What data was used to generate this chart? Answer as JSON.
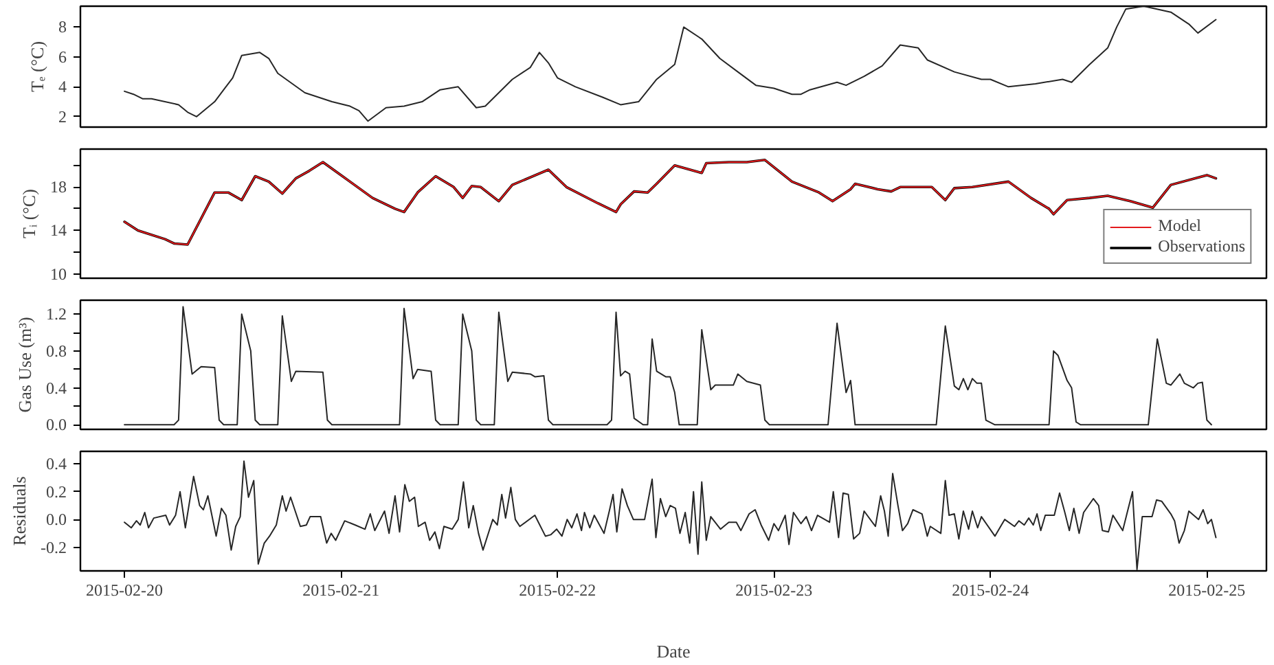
{
  "chart_data": [
    {
      "type": "line",
      "ylabel": "Tₑ (°C)",
      "tick_labels": "y",
      "grid": false,
      "legend": false,
      "line_style": "solid",
      "marker": "none",
      "xlim": [
        "2015-02-19T19:07",
        "2015-02-25T06:36"
      ],
      "xticks": [
        "2015-02-20",
        "2015-02-21",
        "2015-02-22",
        "2015-02-23",
        "2015-02-24",
        "2015-02-25"
      ],
      "ylim": [
        1.3,
        9.4
      ],
      "yticks": [
        2,
        4,
        6,
        8
      ],
      "x": [
        "2015-02-20T00:00",
        "2015-02-20T01:00",
        "2015-02-20T02:00",
        "2015-02-20T03:00",
        "2015-02-20T06:00",
        "2015-02-20T07:00",
        "2015-02-20T08:00",
        "2015-02-20T10:00",
        "2015-02-20T11:00",
        "2015-02-20T12:00",
        "2015-02-20T13:00",
        "2015-02-20T15:00",
        "2015-02-20T16:00",
        "2015-02-20T17:00",
        "2015-02-20T20:00",
        "2015-02-20T23:00",
        "2015-02-21T01:00",
        "2015-02-21T02:00",
        "2015-02-21T03:00",
        "2015-02-21T05:00",
        "2015-02-21T07:00",
        "2015-02-21T09:00",
        "2015-02-21T11:00",
        "2015-02-21T13:00",
        "2015-02-21T15:00",
        "2015-02-21T16:00",
        "2015-02-21T19:00",
        "2015-02-21T21:00",
        "2015-02-21T22:00",
        "2015-02-21T23:00",
        "2015-02-22T00:00",
        "2015-02-22T02:00",
        "2015-02-22T05:00",
        "2015-02-22T07:00",
        "2015-02-22T09:00",
        "2015-02-22T11:00",
        "2015-02-22T13:00",
        "2015-02-22T14:00",
        "2015-02-22T16:00",
        "2015-02-22T18:00",
        "2015-02-22T20:00",
        "2015-02-22T22:00",
        "2015-02-23T00:00",
        "2015-02-23T02:00",
        "2015-02-23T03:00",
        "2015-02-23T04:00",
        "2015-02-23T07:00",
        "2015-02-23T08:00",
        "2015-02-23T10:00",
        "2015-02-23T12:00",
        "2015-02-23T14:00",
        "2015-02-23T16:00",
        "2015-02-23T17:00",
        "2015-02-23T20:00",
        "2015-02-23T23:00",
        "2015-02-24T00:00",
        "2015-02-24T02:00",
        "2015-02-24T05:00",
        "2015-02-24T08:00",
        "2015-02-24T09:00",
        "2015-02-24T11:00",
        "2015-02-24T13:00",
        "2015-02-24T14:00",
        "2015-02-24T15:00",
        "2015-02-24T17:00",
        "2015-02-24T20:00",
        "2015-02-24T22:00",
        "2015-02-24T23:00",
        "2015-02-25T01:00"
      ],
      "series": [
        {
          "color": "#262626",
          "values": [
            3.7,
            3.5,
            3.2,
            3.2,
            2.8,
            2.3,
            2.0,
            3.0,
            3.8,
            4.6,
            6.1,
            6.3,
            5.9,
            4.9,
            3.6,
            3.0,
            2.7,
            2.4,
            1.7,
            2.6,
            2.7,
            3.0,
            3.8,
            4.0,
            2.6,
            2.7,
            4.5,
            5.3,
            6.3,
            5.6,
            4.6,
            4.0,
            3.3,
            2.8,
            3.0,
            4.5,
            5.5,
            8.0,
            7.2,
            5.9,
            5.0,
            4.1,
            3.9,
            3.5,
            3.5,
            3.8,
            4.3,
            4.1,
            4.7,
            5.4,
            6.8,
            6.6,
            5.8,
            5.0,
            4.5,
            4.5,
            4.0,
            4.2,
            4.5,
            4.3,
            5.5,
            6.6,
            8.0,
            9.2,
            9.4,
            9.0,
            8.2,
            7.6,
            8.5
          ]
        }
      ]
    },
    {
      "type": "line",
      "ylabel": "Tᵢ (°C)",
      "tick_labels": "y",
      "grid": false,
      "legend": "bottom right",
      "line_style": "solid",
      "marker": "none",
      "xlim": [
        "2015-02-19T19:07",
        "2015-02-25T06:36"
      ],
      "xticks": [
        "2015-02-20",
        "2015-02-21",
        "2015-02-22",
        "2015-02-23",
        "2015-02-24",
        "2015-02-25"
      ],
      "ylim": [
        9.6,
        21.5
      ],
      "yticks": [
        10,
        {
          "value": 12,
          "label": null
        },
        14,
        {
          "value": 16,
          "label": null
        },
        18,
        {
          "value": 20,
          "label": null
        }
      ],
      "x": [
        "2015-02-20T00:00",
        "2015-02-20T01:30",
        "2015-02-20T04:30",
        "2015-02-20T05:30",
        "2015-02-20T07:00",
        "2015-02-20T10:00",
        "2015-02-20T11:30",
        "2015-02-20T13:00",
        "2015-02-20T14:30",
        "2015-02-20T16:00",
        "2015-02-20T17:30",
        "2015-02-20T19:00",
        "2015-02-20T20:30",
        "2015-02-20T22:00",
        "2015-02-21T01:00",
        "2015-02-21T03:30",
        "2015-02-21T06:00",
        "2015-02-21T07:00",
        "2015-02-21T08:30",
        "2015-02-21T10:30",
        "2015-02-21T12:30",
        "2015-02-21T13:30",
        "2015-02-21T14:30",
        "2015-02-21T15:30",
        "2015-02-21T17:30",
        "2015-02-21T19:00",
        "2015-02-21T23:00",
        "2015-02-22T01:00",
        "2015-02-22T04:30",
        "2015-02-22T06:30",
        "2015-02-22T07:00",
        "2015-02-22T08:30",
        "2015-02-22T10:00",
        "2015-02-22T11:00",
        "2015-02-22T13:00",
        "2015-02-22T16:00",
        "2015-02-22T16:30",
        "2015-02-22T19:00",
        "2015-02-22T21:00",
        "2015-02-22T23:00",
        "2015-02-23T02:00",
        "2015-02-23T05:00",
        "2015-02-23T06:30",
        "2015-02-23T08:30",
        "2015-02-23T09:00",
        "2015-02-23T11:30",
        "2015-02-23T13:00",
        "2015-02-23T14:00",
        "2015-02-23T17:30",
        "2015-02-23T19:00",
        "2015-02-23T20:00",
        "2015-02-23T22:00",
        "2015-02-24T02:00",
        "2015-02-24T04:30",
        "2015-02-24T06:30",
        "2015-02-24T07:00",
        "2015-02-24T08:30",
        "2015-02-24T11:00",
        "2015-02-24T13:00",
        "2015-02-24T15:30",
        "2015-02-24T18:00",
        "2015-02-24T20:00",
        "2015-02-25T00:00",
        "2015-02-25T01:00"
      ],
      "series": [
        {
          "name": "Model",
          "color": "#e31a1c",
          "values": [
            14.8,
            14.0,
            13.2,
            12.8,
            12.7,
            17.5,
            17.5,
            16.8,
            19.0,
            18.5,
            17.4,
            18.8,
            19.5,
            20.3,
            18.5,
            17.0,
            16.0,
            15.7,
            17.5,
            19.0,
            18.0,
            17.0,
            18.1,
            18.0,
            16.7,
            18.2,
            19.6,
            18.0,
            16.5,
            15.7,
            16.4,
            17.6,
            17.5,
            18.3,
            20.0,
            19.3,
            20.2,
            20.3,
            20.3,
            20.5,
            18.5,
            17.5,
            16.7,
            17.8,
            18.3,
            17.8,
            17.6,
            18.0,
            18.0,
            16.8,
            17.9,
            18.0,
            18.5,
            17.0,
            16.0,
            15.5,
            16.8,
            17.0,
            17.2,
            16.7,
            16.1,
            18.2,
            19.1,
            18.8
          ]
        },
        {
          "name": "Observations",
          "color": "#000000",
          "values": [
            14.8,
            14.0,
            13.2,
            12.8,
            12.7,
            17.5,
            17.5,
            16.8,
            19.0,
            18.5,
            17.4,
            18.8,
            19.5,
            20.3,
            18.5,
            17.0,
            16.0,
            15.7,
            17.5,
            19.0,
            18.0,
            17.0,
            18.1,
            18.0,
            16.7,
            18.2,
            19.6,
            18.0,
            16.5,
            15.7,
            16.4,
            17.6,
            17.5,
            18.3,
            20.0,
            19.3,
            20.2,
            20.3,
            20.3,
            20.5,
            18.5,
            17.5,
            16.7,
            17.8,
            18.3,
            17.8,
            17.6,
            18.0,
            18.0,
            16.8,
            17.9,
            18.0,
            18.5,
            17.0,
            16.0,
            15.5,
            16.8,
            17.0,
            17.2,
            16.7,
            16.1,
            18.2,
            19.1,
            18.8
          ]
        }
      ]
    },
    {
      "type": "line",
      "ylabel": "Gas Use (m³)",
      "tick_labels": "y",
      "grid": false,
      "legend": false,
      "line_style": "solid",
      "marker": "none",
      "xlim": [
        "2015-02-19T19:07",
        "2015-02-25T06:36"
      ],
      "xticks": [
        "2015-02-20",
        "2015-02-21",
        "2015-02-22",
        "2015-02-23",
        "2015-02-24",
        "2015-02-25"
      ],
      "ylim": [
        -0.05,
        1.35
      ],
      "yticks": [
        {
          "value": 0,
          "label": "0.0"
        },
        {
          "value": 0.2,
          "label": null
        },
        {
          "value": 0.4,
          "label": "0.4"
        },
        {
          "value": 0.6,
          "label": null
        },
        {
          "value": 0.8,
          "label": "0.8"
        },
        {
          "value": 1.0,
          "label": null
        },
        {
          "value": 1.2,
          "label": "1.2"
        }
      ],
      "x": [
        "2015-02-20T00:00",
        "2015-02-20T05:30",
        "2015-02-20T06:00",
        "2015-02-20T06:30",
        "2015-02-20T07:30",
        "2015-02-20T08:30",
        "2015-02-20T10:00",
        "2015-02-20T10:30",
        "2015-02-20T11:00",
        "2015-02-20T12:30",
        "2015-02-20T13:00",
        "2015-02-20T14:00",
        "2015-02-20T14:30",
        "2015-02-20T15:00",
        "2015-02-20T17:00",
        "2015-02-20T17:30",
        "2015-02-20T18:30",
        "2015-02-20T19:00",
        "2015-02-20T22:00",
        "2015-02-20T22:30",
        "2015-02-20T23:00",
        "2015-02-21T06:30",
        "2015-02-21T07:00",
        "2015-02-21T08:00",
        "2015-02-21T08:30",
        "2015-02-21T10:00",
        "2015-02-21T10:30",
        "2015-02-21T11:00",
        "2015-02-21T13:00",
        "2015-02-21T13:30",
        "2015-02-21T14:30",
        "2015-02-21T15:00",
        "2015-02-21T15:30",
        "2015-02-21T17:00",
        "2015-02-21T17:30",
        "2015-02-21T18:30",
        "2015-02-21T19:00",
        "2015-02-21T21:00",
        "2015-02-21T21:30",
        "2015-02-21T22:30",
        "2015-02-21T23:00",
        "2015-02-21T23:30",
        "2015-02-22T05:30",
        "2015-02-22T06:00",
        "2015-02-22T06:30",
        "2015-02-22T07:00",
        "2015-02-22T07:30",
        "2015-02-22T08:00",
        "2015-02-22T08:30",
        "2015-02-22T09:30",
        "2015-02-22T10:00",
        "2015-02-22T10:30",
        "2015-02-22T11:00",
        "2015-02-22T12:00",
        "2015-02-22T12:30",
        "2015-02-22T13:00",
        "2015-02-22T13:30",
        "2015-02-22T15:30",
        "2015-02-22T16:00",
        "2015-02-22T17:00",
        "2015-02-22T17:30",
        "2015-02-22T19:30",
        "2015-02-22T20:00",
        "2015-02-22T21:00",
        "2015-02-22T22:30",
        "2015-02-22T23:00",
        "2015-02-22T23:30",
        "2015-02-23T06:00",
        "2015-02-23T07:00",
        "2015-02-23T08:00",
        "2015-02-23T08:30",
        "2015-02-23T09:00",
        "2015-02-23T18:00",
        "2015-02-23T19:00",
        "2015-02-23T20:00",
        "2015-02-23T20:30",
        "2015-02-23T21:00",
        "2015-02-23T21:30",
        "2015-02-23T22:00",
        "2015-02-23T22:30",
        "2015-02-23T23:00",
        "2015-02-23T23:30",
        "2015-02-24T00:30",
        "2015-02-24T06:30",
        "2015-02-24T07:00",
        "2015-02-24T07:30",
        "2015-02-24T08:30",
        "2015-02-24T09:00",
        "2015-02-24T09:30",
        "2015-02-24T10:00",
        "2015-02-24T17:30",
        "2015-02-24T18:30",
        "2015-02-24T19:30",
        "2015-02-24T20:00",
        "2015-02-24T21:00",
        "2015-02-24T21:30",
        "2015-02-24T22:30",
        "2015-02-24T23:00",
        "2015-02-24T23:30",
        "2015-02-25T00:00",
        "2015-02-25T00:30"
      ],
      "series": [
        {
          "color": "#262626",
          "values": [
            0,
            0,
            0.05,
            1.28,
            0.55,
            0.63,
            0.62,
            0.05,
            0,
            0,
            1.2,
            0.8,
            0.05,
            0,
            0,
            1.18,
            0.47,
            0.58,
            0.57,
            0.05,
            0,
            0,
            1.26,
            0.5,
            0.6,
            0.58,
            0.05,
            0,
            0,
            1.2,
            0.8,
            0.05,
            0,
            0,
            1.22,
            0.47,
            0.57,
            0.55,
            0.52,
            0.53,
            0.05,
            0,
            0,
            0.05,
            1.22,
            0.53,
            0.58,
            0.55,
            0.07,
            0,
            0,
            0.93,
            0.58,
            0.52,
            0.52,
            0.35,
            0,
            0,
            1.03,
            0.38,
            0.43,
            0.43,
            0.55,
            0.47,
            0.43,
            0.05,
            0,
            0,
            1.1,
            0.35,
            0.48,
            0,
            0,
            1.07,
            0.42,
            0.38,
            0.5,
            0.38,
            0.5,
            0.45,
            0.45,
            0.05,
            0,
            0,
            0.8,
            0.75,
            0.48,
            0.4,
            0.03,
            0,
            0,
            0.93,
            0.45,
            0.43,
            0.55,
            0.45,
            0.4,
            0.45,
            0.46,
            0.05,
            0
          ]
        }
      ]
    },
    {
      "type": "line",
      "ylabel": "Residuals",
      "xlabel": "Date",
      "grid": false,
      "legend": false,
      "line_style": "solid",
      "marker": "none",
      "xlim": [
        "2015-02-19T19:07",
        "2015-02-25T06:36"
      ],
      "xticks": [
        "2015-02-20",
        "2015-02-21",
        "2015-02-22",
        "2015-02-23",
        "2015-02-24",
        "2015-02-25"
      ],
      "ylim": [
        -0.37,
        0.49
      ],
      "yticks": [
        {
          "value": -0.2,
          "label": "-0.2"
        },
        {
          "value": 0,
          "label": "0.0"
        },
        {
          "value": 0.2,
          "label": "0.2"
        },
        {
          "value": 0.4,
          "label": "0.4"
        }
      ],
      "x": [
        "2015-02-20T00:00",
        "2015-02-20T00:45",
        "2015-02-20T01:20",
        "2015-02-20T01:45",
        "2015-02-20T02:15",
        "2015-02-20T02:40",
        "2015-02-20T03:15",
        "2015-02-20T04:35",
        "2015-02-20T05:00",
        "2015-02-20T05:40",
        "2015-02-20T06:10",
        "2015-02-20T06:45",
        "2015-02-20T07:40",
        "2015-02-20T08:20",
        "2015-02-20T08:45",
        "2015-02-20T09:15",
        "2015-02-20T10:10",
        "2015-02-20T10:45",
        "2015-02-20T11:15",
        "2015-02-20T11:50",
        "2015-02-20T12:20",
        "2015-02-20T12:50",
        "2015-02-20T13:15",
        "2015-02-20T13:45",
        "2015-02-20T14:20",
        "2015-02-20T14:50",
        "2015-02-20T15:30",
        "2015-02-20T16:05",
        "2015-02-20T16:50",
        "2015-02-20T17:30",
        "2015-02-20T17:55",
        "2015-02-20T18:25",
        "2015-02-20T19:30",
        "2015-02-20T20:10",
        "2015-02-20T20:35",
        "2015-02-20T21:45",
        "2015-02-20T22:25",
        "2015-02-20T22:55",
        "2015-02-20T23:25",
        "2015-02-21T00:25",
        "2015-02-21T01:35",
        "2015-02-21T02:40",
        "2015-02-21T03:15",
        "2015-02-21T03:45",
        "2015-02-21T04:50",
        "2015-02-21T05:20",
        "2015-02-21T06:00",
        "2015-02-21T06:30",
        "2015-02-21T07:05",
        "2015-02-21T07:35",
        "2015-02-21T08:10",
        "2015-02-21T08:35",
        "2015-02-21T09:20",
        "2015-02-21T09:50",
        "2015-02-21T10:25",
        "2015-02-21T10:55",
        "2015-02-21T11:25",
        "2015-02-21T12:20",
        "2015-02-21T13:00",
        "2015-02-21T13:35",
        "2015-02-21T14:10",
        "2015-02-21T14:40",
        "2015-02-21T15:15",
        "2015-02-21T15:45",
        "2015-02-21T16:50",
        "2015-02-21T17:20",
        "2015-02-21T17:50",
        "2015-02-21T18:15",
        "2015-02-21T18:50",
        "2015-02-21T19:20",
        "2015-02-21T19:50",
        "2015-02-21T21:30",
        "2015-02-21T22:40",
        "2015-02-21T23:15",
        "2015-02-21T23:55",
        "2015-02-22T00:30",
        "2015-02-22T01:05",
        "2015-02-22T01:35",
        "2015-02-22T02:10",
        "2015-02-22T02:40",
        "2015-02-22T03:00",
        "2015-02-22T03:35",
        "2015-02-22T04:05",
        "2015-02-22T05:10",
        "2015-02-22T05:45",
        "2015-02-22T06:10",
        "2015-02-22T06:35",
        "2015-02-22T07:10",
        "2015-02-22T07:45",
        "2015-02-22T08:25",
        "2015-02-22T09:40",
        "2015-02-22T10:30",
        "2015-02-22T10:55",
        "2015-02-22T11:25",
        "2015-02-22T12:00",
        "2015-02-22T12:30",
        "2015-02-22T13:05",
        "2015-02-22T13:35",
        "2015-02-22T14:10",
        "2015-02-22T14:40",
        "2015-02-22T15:05",
        "2015-02-22T15:35",
        "2015-02-22T16:00",
        "2015-02-22T16:30",
        "2015-02-22T17:00",
        "2015-02-22T18:05",
        "2015-02-22T19:00",
        "2015-02-22T19:50",
        "2015-02-22T20:20",
        "2015-02-22T21:15",
        "2015-02-22T21:55",
        "2015-02-22T22:35",
        "2015-02-22T23:25",
        "2015-02-23T00:00",
        "2015-02-23T00:30",
        "2015-02-23T01:15",
        "2015-02-23T01:40",
        "2015-02-23T02:10",
        "2015-02-23T03:00",
        "2015-02-23T03:35",
        "2015-02-23T04:10",
        "2015-02-23T04:50",
        "2015-02-23T06:10",
        "2015-02-23T06:35",
        "2015-02-23T07:10",
        "2015-02-23T07:40",
        "2015-02-23T08:15",
        "2015-02-23T08:50",
        "2015-02-23T09:30",
        "2015-02-23T10:00",
        "2015-02-23T11:15",
        "2015-02-23T11:50",
        "2015-02-23T12:15",
        "2015-02-23T12:40",
        "2015-02-23T13:10",
        "2015-02-23T13:45",
        "2015-02-23T14:15",
        "2015-02-23T14:50",
        "2015-02-23T15:25",
        "2015-02-23T16:25",
        "2015-02-23T17:00",
        "2015-02-23T17:20",
        "2015-02-23T18:30",
        "2015-02-23T19:00",
        "2015-02-23T19:25",
        "2015-02-23T20:00",
        "2015-02-23T20:30",
        "2015-02-23T21:00",
        "2015-02-23T21:35",
        "2015-02-23T22:00",
        "2015-02-23T22:35",
        "2015-02-23T23:00",
        "2015-02-24T00:30",
        "2015-02-24T01:35",
        "2015-02-24T02:40",
        "2015-02-24T03:10",
        "2015-02-24T03:45",
        "2015-02-24T04:15",
        "2015-02-24T04:45",
        "2015-02-24T05:10",
        "2015-02-24T05:35",
        "2015-02-24T06:05",
        "2015-02-24T07:05",
        "2015-02-24T07:40",
        "2015-02-24T08:15",
        "2015-02-24T08:45",
        "2015-02-24T09:15",
        "2015-02-24T09:50",
        "2015-02-24T10:20",
        "2015-02-24T11:25",
        "2015-02-24T12:00",
        "2015-02-24T12:25",
        "2015-02-24T13:05",
        "2015-02-24T13:35",
        "2015-02-24T14:40",
        "2015-02-24T15:10",
        "2015-02-24T15:45",
        "2015-02-24T16:15",
        "2015-02-24T16:50",
        "2015-02-24T17:55",
        "2015-02-24T18:25",
        "2015-02-24T19:00",
        "2015-02-24T20:00",
        "2015-02-24T20:25",
        "2015-02-24T20:55",
        "2015-02-24T21:30",
        "2015-02-24T22:00",
        "2015-02-24T23:05",
        "2015-02-24T23:35",
        "2015-02-25T00:05",
        "2015-02-25T00:30",
        "2015-02-25T01:00"
      ],
      "series": [
        {
          "color": "#262626",
          "values": [
            -0.02,
            -0.06,
            -0.01,
            -0.04,
            0.05,
            -0.06,
            0.01,
            0.03,
            -0.04,
            0.03,
            0.2,
            -0.06,
            0.31,
            0.1,
            0.07,
            0.17,
            -0.12,
            0.08,
            0.03,
            -0.22,
            -0.05,
            0.02,
            0.42,
            0.16,
            0.28,
            -0.32,
            -0.17,
            -0.12,
            -0.04,
            0.17,
            0.06,
            0.16,
            -0.05,
            -0.04,
            0.02,
            0.02,
            -0.17,
            -0.1,
            -0.15,
            -0.01,
            -0.04,
            -0.07,
            0.04,
            -0.08,
            0.06,
            -0.1,
            0.17,
            -0.09,
            0.25,
            0.13,
            0.16,
            -0.05,
            -0.02,
            -0.15,
            -0.09,
            -0.21,
            -0.05,
            -0.07,
            0.0,
            0.27,
            -0.06,
            0.1,
            -0.1,
            -0.22,
            0.0,
            -0.04,
            0.18,
            0.01,
            0.23,
            0.0,
            -0.05,
            0.03,
            -0.12,
            -0.11,
            -0.07,
            -0.12,
            0.0,
            -0.06,
            0.04,
            -0.08,
            0.05,
            -0.06,
            0.03,
            -0.1,
            0.06,
            0.18,
            -0.09,
            0.22,
            0.1,
            0.0,
            0.0,
            0.29,
            -0.13,
            0.15,
            0.02,
            0.1,
            0.08,
            -0.1,
            0.05,
            -0.17,
            0.2,
            -0.25,
            0.27,
            -0.15,
            0.02,
            -0.07,
            -0.02,
            -0.02,
            -0.08,
            0.04,
            0.07,
            -0.04,
            -0.15,
            -0.03,
            -0.08,
            0.03,
            -0.18,
            0.05,
            -0.03,
            0.02,
            -0.08,
            0.03,
            -0.02,
            0.2,
            -0.13,
            0.19,
            0.18,
            -0.14,
            -0.1,
            0.06,
            -0.05,
            0.17,
            0.06,
            -0.12,
            0.33,
            0.1,
            -0.08,
            -0.03,
            0.07,
            0.04,
            -0.12,
            -0.05,
            -0.1,
            0.28,
            0.03,
            0.04,
            -0.14,
            0.06,
            -0.07,
            0.06,
            -0.06,
            0.02,
            -0.12,
            0.0,
            -0.05,
            -0.01,
            -0.04,
            0.01,
            -0.04,
            0.04,
            -0.08,
            0.03,
            0.03,
            0.19,
            0.05,
            -0.08,
            0.08,
            -0.1,
            0.05,
            0.15,
            0.1,
            -0.08,
            -0.09,
            0.03,
            -0.08,
            0.05,
            0.2,
            -0.36,
            0.02,
            0.02,
            0.14,
            0.13,
            0.04,
            -0.01,
            -0.17,
            -0.08,
            0.06,
            0.0,
            0.07,
            -0.03,
            0.0,
            -0.13
          ]
        }
      ]
    }
  ]
}
